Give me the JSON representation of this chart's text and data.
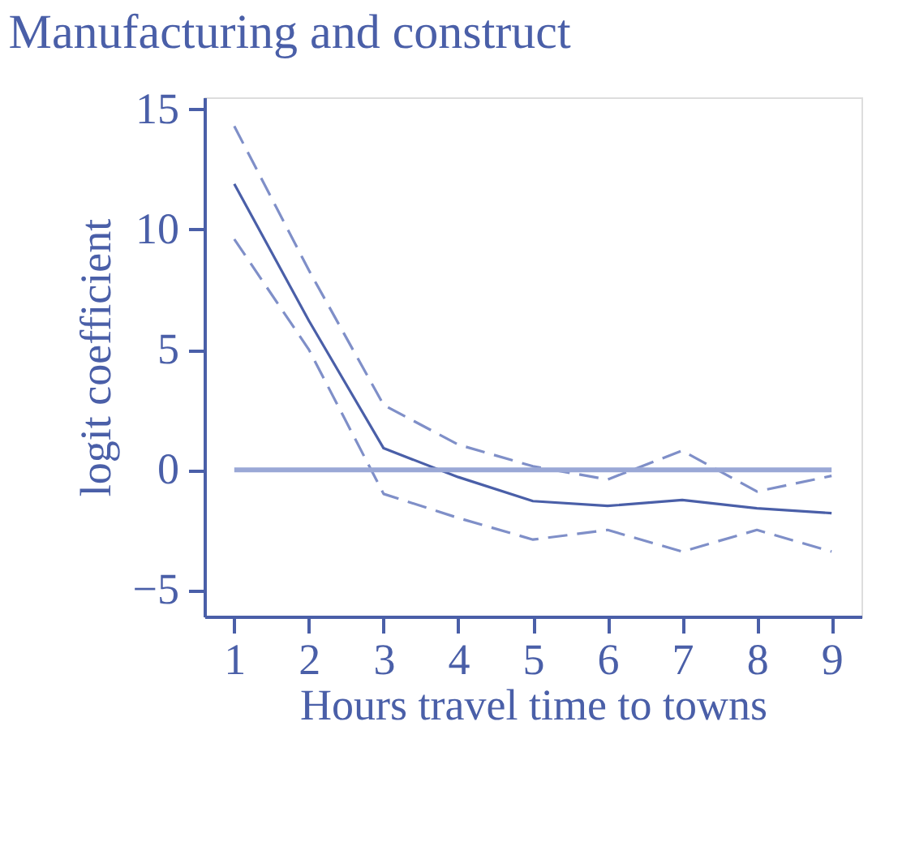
{
  "chart_data": {
    "type": "line",
    "title": "Manufacturing and construct",
    "xlabel": "Hours travel time to towns",
    "ylabel": "logit coefficient",
    "x": [
      1,
      2,
      3,
      4,
      5,
      6,
      7,
      8,
      9
    ],
    "series": [
      {
        "color": "#4a5fa8",
        "line_style": "solid",
        "values": [
          11.9,
          6.2,
          0.9,
          -0.3,
          -1.3,
          -1.5,
          -1.25,
          -1.6,
          -1.8
        ]
      },
      {
        "color": "#7f8fc8",
        "line_style": "dashed",
        "values": [
          14.3,
          8.3,
          2.7,
          1.05,
          0.15,
          -0.4,
          0.8,
          -0.9,
          -0.25
        ]
      },
      {
        "color": "#7f8fc8",
        "line_style": "dashed",
        "values": [
          9.6,
          5.0,
          -1.0,
          -2.0,
          -2.9,
          -2.5,
          -3.4,
          -2.5,
          -3.4
        ]
      }
    ],
    "xlim": [
      0.6,
      9.4
    ],
    "xticks": [
      1,
      2,
      3,
      4,
      5,
      6,
      7,
      8,
      9
    ],
    "ylim": [
      -6.1,
      15.5
    ],
    "yticks": [
      -5,
      0,
      5,
      10,
      15
    ],
    "ref_lines": [
      {
        "axis": "y",
        "value": 0,
        "color": "#9aa8d6",
        "line_style": "solid"
      }
    ],
    "grid": false,
    "marker": "none"
  }
}
